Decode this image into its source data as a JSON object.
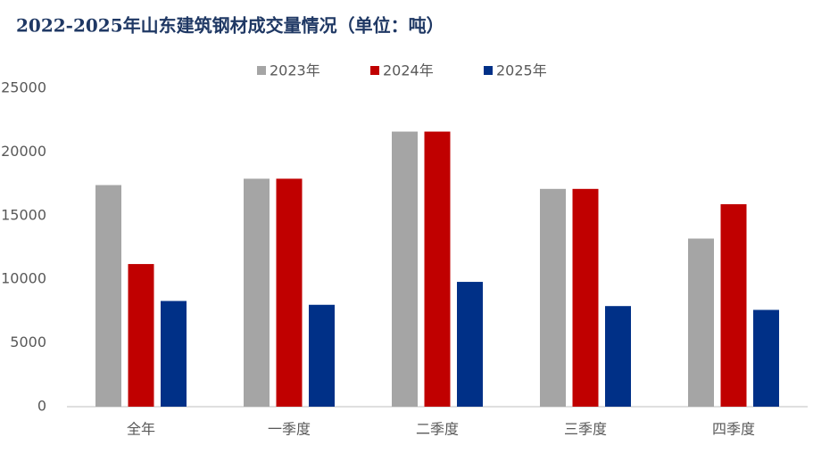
{
  "chart_data": {
    "type": "bar",
    "title": "2022-2025年山东建筑钢材成交量情况（单位：吨）",
    "categories": [
      "全年",
      "一季度",
      "二季度",
      "三季度",
      "四季度"
    ],
    "series": [
      {
        "name": "2023年",
        "color": "#a5a5a5",
        "values": [
          17400,
          17900,
          21600,
          17100,
          13200
        ]
      },
      {
        "name": "2024年",
        "color": "#c00000",
        "values": [
          11200,
          17900,
          21600,
          17100,
          15900
        ]
      },
      {
        "name": "2025年",
        "color": "#003087",
        "values": [
          8300,
          8000,
          9800,
          7900,
          7600
        ]
      }
    ],
    "ylim": [
      0,
      25000
    ],
    "yticks": [
      0,
      5000,
      10000,
      15000,
      20000,
      25000
    ],
    "grid": false
  }
}
